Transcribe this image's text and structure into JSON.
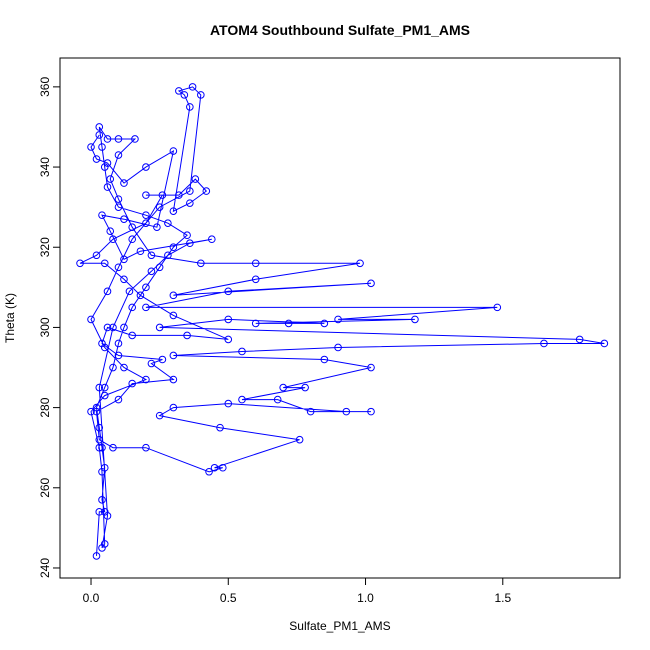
{
  "chart_data": {
    "type": "line",
    "marker": "circle",
    "title": "ATOM4 Southbound Sulfate_PM1_AMS",
    "x_label": "Sulfate_PM1_AMS",
    "y_label": "Theta (K)",
    "color": "#0000ff",
    "xlim": [
      -0.113,
      1.927
    ],
    "ylim": [
      237.5,
      367.2
    ],
    "xticks": [
      {
        "value": 0,
        "label": "0.0"
      },
      0.5,
      {
        "value": 1,
        "label": "1.0"
      },
      1.5
    ],
    "yticks": [
      240,
      260,
      280,
      300,
      320,
      340,
      360
    ],
    "grid": false,
    "x": [
      0.02,
      0.03,
      0.05,
      0.04,
      0.05,
      0.04,
      0.03,
      0.02,
      0.05,
      0.08,
      0.1,
      0.12,
      0.15,
      0.2,
      0.25,
      0.3,
      0.35,
      0.28,
      0.2,
      0.1,
      0.06,
      0.05,
      0.04,
      0.03,
      0.06,
      0.1,
      0.16,
      0.1,
      0.07,
      0.1,
      0.15,
      0.22,
      0.4,
      0.6,
      0.98,
      0.6,
      0.3,
      1.02,
      0.5,
      0.2,
      1.48,
      0.9,
      1.18,
      0.6,
      0.72,
      0.85,
      0.5,
      0.25,
      1.78,
      1.87,
      1.65,
      0.9,
      0.55,
      0.3,
      0.85,
      1.02,
      0.7,
      0.78,
      0.55,
      0.68,
      0.8,
      1.02,
      0.93,
      0.5,
      0.3,
      0.25,
      0.47,
      0.76,
      0.45,
      0.48,
      0.43,
      0.2,
      0.08,
      0.03,
      0.02,
      0.1,
      0.15,
      0.3,
      0.22,
      0.26,
      0.1,
      0.04,
      0.06,
      0.15,
      0.35,
      0.5,
      0.3,
      0.18,
      0.12,
      0.05,
      -0.04,
      0.02,
      0.08,
      0.2,
      0.26,
      0.2,
      0.32,
      0.38,
      0.42,
      0.36,
      0.3,
      0.36,
      0.34,
      0.32,
      0.37,
      0.4,
      0.36,
      0.25,
      0.15,
      0.1,
      0.06,
      0.0,
      0.05,
      0.12,
      0.2,
      0.05,
      0.0,
      0.03,
      0.04,
      0.05,
      0.04,
      0.06,
      0.03,
      0.08,
      0.14,
      0.22,
      0.28,
      0.36,
      0.44,
      0.18,
      0.12,
      0.07,
      0.04,
      0.12,
      0.24,
      0.3,
      0.2,
      0.12,
      0.06,
      0.02,
      0.0,
      0.03
    ],
    "values": [
      243,
      254,
      254,
      257,
      265,
      270,
      275,
      280,
      285,
      290,
      296,
      300,
      305,
      310,
      315,
      320,
      323,
      326,
      328,
      330,
      335,
      340,
      345,
      350,
      347,
      347,
      347,
      343,
      337,
      332,
      325,
      318,
      316,
      316,
      316,
      312,
      308,
      311,
      309,
      305,
      305,
      302,
      302,
      301,
      301,
      301,
      302,
      300,
      297,
      296,
      296,
      295,
      294,
      293,
      292,
      290,
      285,
      285,
      282,
      282,
      279,
      279,
      279,
      281,
      280,
      278,
      275,
      272,
      265,
      265,
      264,
      270,
      270,
      272,
      279,
      282,
      286,
      287,
      291,
      292,
      293,
      296,
      300,
      298,
      298,
      297,
      303,
      308,
      312,
      316,
      316,
      318,
      322,
      326,
      333,
      333,
      333,
      337,
      334,
      331,
      329,
      355,
      358,
      359,
      360,
      358,
      334,
      330,
      322,
      315,
      309,
      302,
      295,
      290,
      287,
      283,
      279,
      270,
      264,
      246,
      245,
      253,
      285,
      300,
      309,
      314,
      318,
      321,
      322,
      319,
      317,
      324,
      328,
      327,
      325,
      344,
      340,
      336,
      341,
      342,
      345,
      348
    ]
  }
}
